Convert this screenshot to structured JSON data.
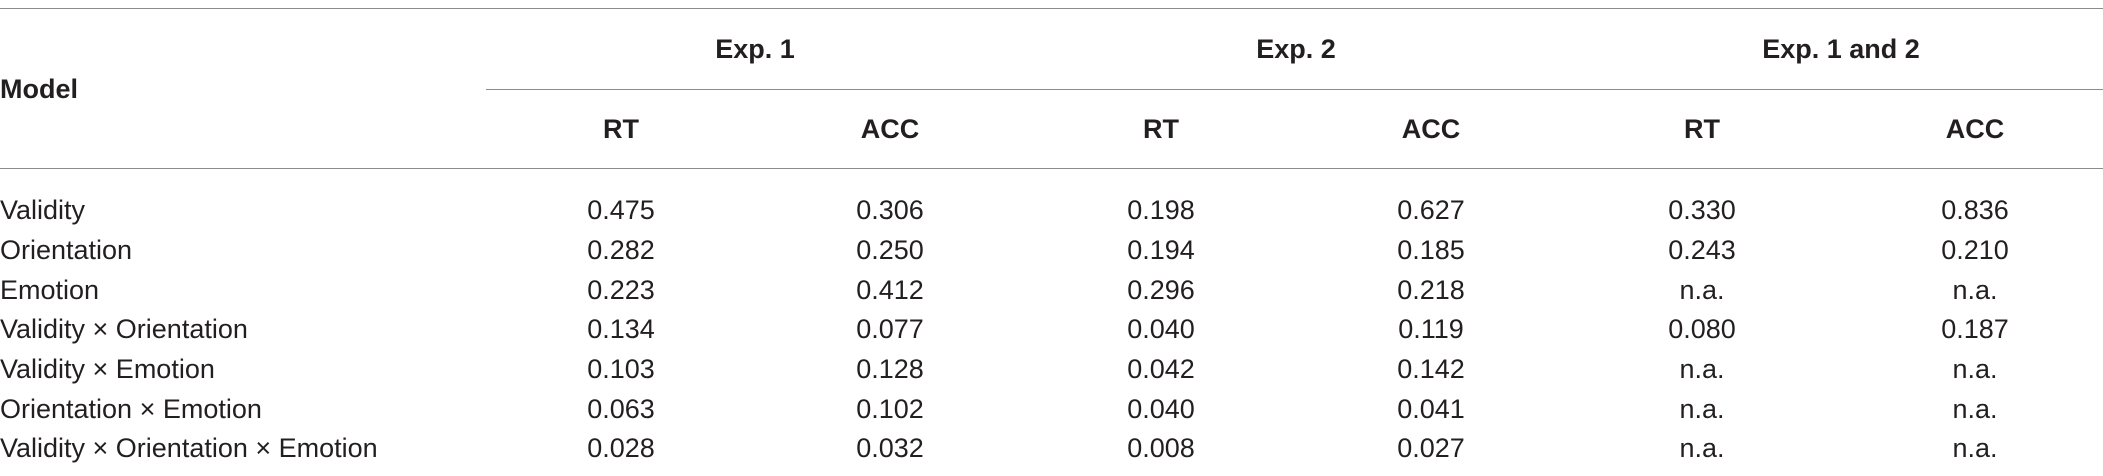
{
  "table": {
    "model_header": "Model",
    "groups": [
      {
        "label": "Exp. 1",
        "sub": [
          "RT",
          "ACC"
        ]
      },
      {
        "label": "Exp. 2",
        "sub": [
          "RT",
          "ACC"
        ]
      },
      {
        "label": "Exp. 1 and 2",
        "sub": [
          "RT",
          "ACC"
        ]
      }
    ],
    "rows": [
      {
        "label": "Validity",
        "values": [
          "0.475",
          "0.306",
          "0.198",
          "0.627",
          "0.330",
          "0.836"
        ]
      },
      {
        "label": "Orientation",
        "values": [
          "0.282",
          "0.250",
          "0.194",
          "0.185",
          "0.243",
          "0.210"
        ]
      },
      {
        "label": "Emotion",
        "values": [
          "0.223",
          "0.412",
          "0.296",
          "0.218",
          "n.a.",
          "n.a."
        ]
      },
      {
        "label": "Validity × Orientation",
        "values": [
          "0.134",
          "0.077",
          "0.040",
          "0.119",
          "0.080",
          "0.187"
        ]
      },
      {
        "label": "Validity × Emotion",
        "values": [
          "0.103",
          "0.128",
          "0.042",
          "0.142",
          "n.a.",
          "n.a."
        ]
      },
      {
        "label": "Orientation × Emotion",
        "values": [
          "0.063",
          "0.102",
          "0.040",
          "0.041",
          "n.a.",
          "n.a."
        ]
      },
      {
        "label": "Validity × Orientation × Emotion",
        "values": [
          "0.028",
          "0.032",
          "0.008",
          "0.027",
          "n.a.",
          "n.a."
        ]
      }
    ]
  }
}
